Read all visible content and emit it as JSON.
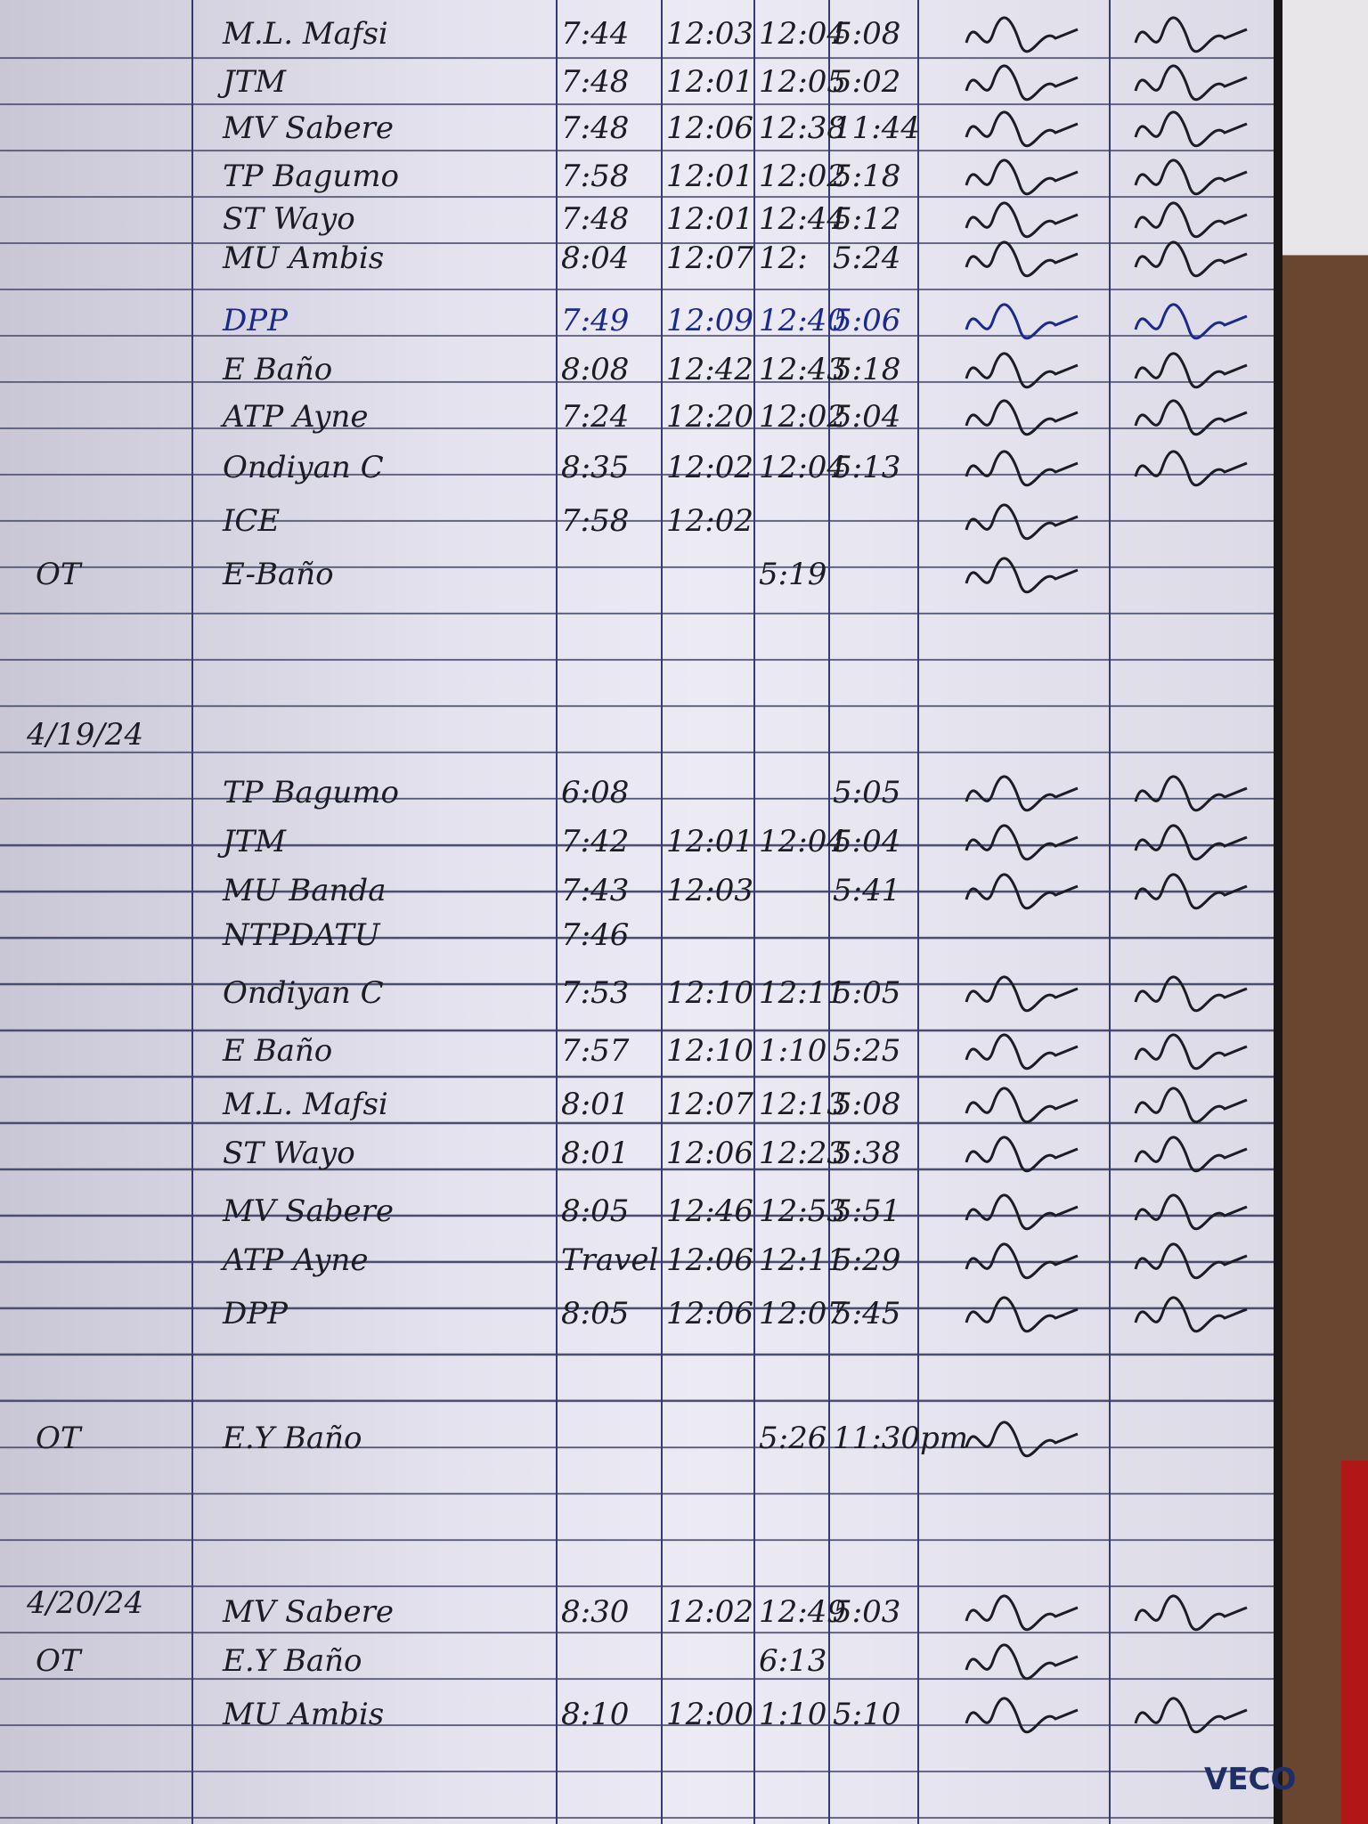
{
  "logbook": {
    "sections": [
      {
        "date": "",
        "rows": [
          {
            "mark": "",
            "name": "M.L. Mafsi",
            "in_am": "7:44",
            "out_am": "12:03",
            "in_pm": "12:04",
            "out_pm": "5:08",
            "ink": "black"
          },
          {
            "mark": "",
            "name": "JTM",
            "in_am": "7:48",
            "out_am": "12:01",
            "in_pm": "12:05",
            "out_pm": "5:02",
            "ink": "black"
          },
          {
            "mark": "",
            "name": "MV Sabere",
            "in_am": "7:48",
            "out_am": "12:06",
            "in_pm": "12:38",
            "out_pm": "11:44",
            "ink": "black"
          },
          {
            "mark": "",
            "name": "TP Bagumo",
            "in_am": "7:58",
            "out_am": "12:01",
            "in_pm": "12:02",
            "out_pm": "5:18",
            "ink": "black"
          },
          {
            "mark": "",
            "name": "ST Wayo",
            "in_am": "7:48",
            "out_am": "12:01",
            "in_pm": "12:44",
            "out_pm": "5:12",
            "ink": "black"
          },
          {
            "mark": "",
            "name": "MU Ambis",
            "in_am": "8:04",
            "out_am": "12:07",
            "in_pm": "12:",
            "out_pm": "5:24",
            "ink": "black"
          },
          {
            "mark": "",
            "name": "DPP",
            "in_am": "7:49",
            "out_am": "12:09",
            "in_pm": "12:40",
            "out_pm": "5:06",
            "ink": "blue"
          },
          {
            "mark": "",
            "name": "E Baño",
            "in_am": "8:08",
            "out_am": "12:42",
            "in_pm": "12:43",
            "out_pm": "5:18",
            "ink": "black"
          },
          {
            "mark": "",
            "name": "ATP Ayne",
            "in_am": "7:24",
            "out_am": "12:20",
            "in_pm": "12:02",
            "out_pm": "5:04",
            "ink": "black"
          },
          {
            "mark": "",
            "name": "Ondiyan C",
            "in_am": "8:35",
            "out_am": "12:02",
            "in_pm": "12:04",
            "out_pm": "5:13",
            "ink": "black"
          },
          {
            "mark": "",
            "name": "ICE",
            "in_am": "7:58",
            "out_am": "12:02",
            "in_pm": "",
            "out_pm": "",
            "ink": "black"
          },
          {
            "mark": "OT",
            "name": "E-Baño",
            "in_am": "",
            "out_am": "",
            "in_pm": "5:19",
            "out_pm": "",
            "ink": "black"
          }
        ]
      },
      {
        "date": "4/19/24",
        "rows": [
          {
            "mark": "",
            "name": "TP Bagumo",
            "in_am": "6:08",
            "out_am": "",
            "in_pm": "",
            "out_pm": "5:05",
            "ink": "black"
          },
          {
            "mark": "",
            "name": "JTM",
            "in_am": "7:42",
            "out_am": "12:01",
            "in_pm": "12:04",
            "out_pm": "5:04",
            "ink": "black"
          },
          {
            "mark": "",
            "name": "MU Banda",
            "in_am": "7:43",
            "out_am": "12:03",
            "in_pm": "",
            "out_pm": "5:41",
            "ink": "black"
          },
          {
            "mark": "",
            "name": "NTPDATU",
            "in_am": "7:46",
            "out_am": "",
            "in_pm": "",
            "out_pm": "",
            "ink": "black"
          },
          {
            "mark": "",
            "name": "Ondiyan C",
            "in_am": "7:53",
            "out_am": "12:10",
            "in_pm": "12:11",
            "out_pm": "5:05",
            "ink": "black"
          },
          {
            "mark": "",
            "name": "E Baño",
            "in_am": "7:57",
            "out_am": "12:10",
            "in_pm": "1:10",
            "out_pm": "5:25",
            "ink": "black"
          },
          {
            "mark": "",
            "name": "M.L. Mafsi",
            "in_am": "8:01",
            "out_am": "12:07",
            "in_pm": "12:13",
            "out_pm": "5:08",
            "ink": "black"
          },
          {
            "mark": "",
            "name": "ST Wayo",
            "in_am": "8:01",
            "out_am": "12:06",
            "in_pm": "12:23",
            "out_pm": "5:38",
            "ink": "black"
          },
          {
            "mark": "",
            "name": "MV Sabere",
            "in_am": "8:05",
            "out_am": "12:46",
            "in_pm": "12:53",
            "out_pm": "5:51",
            "ink": "black"
          },
          {
            "mark": "",
            "name": "ATP Ayne",
            "in_am": "Travel",
            "out_am": "12:06",
            "in_pm": "12:11",
            "out_pm": "5:29",
            "ink": "black"
          },
          {
            "mark": "",
            "name": "DPP",
            "in_am": "8:05",
            "out_am": "12:06",
            "in_pm": "12:07",
            "out_pm": "5:45",
            "ink": "black"
          },
          {
            "mark": "OT",
            "name": "E.Y Baño",
            "in_am": "",
            "out_am": "",
            "in_pm": "5:26",
            "out_pm": "11:30pm",
            "ink": "black"
          }
        ]
      },
      {
        "date": "4/20/24",
        "rows": [
          {
            "mark": "",
            "name": "MV Sabere",
            "in_am": "8:30",
            "out_am": "12:02",
            "in_pm": "12:49",
            "out_pm": "5:03",
            "ink": "black"
          },
          {
            "mark": "OT",
            "name": "E.Y Baño",
            "in_am": "",
            "out_am": "",
            "in_pm": "6:13",
            "out_pm": "",
            "ink": "black"
          },
          {
            "mark": "",
            "name": "MU Ambis",
            "in_am": "8:10",
            "out_am": "12:00",
            "in_pm": "1:10",
            "out_pm": "5:10",
            "ink": "black"
          }
        ]
      }
    ],
    "brand": "VECO",
    "colors": {
      "ink_black": "#1c1c24",
      "ink_blue": "#1b2a8a",
      "rule_line": "#343a78",
      "paper": "#e4e2ee"
    }
  }
}
